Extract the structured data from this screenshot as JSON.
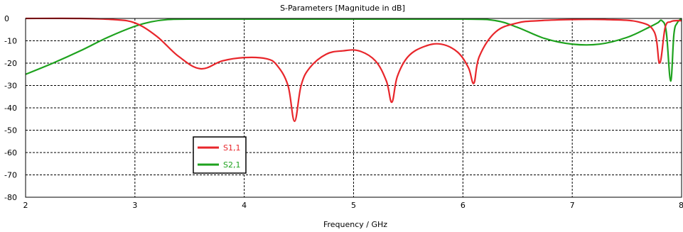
{
  "chart_data": {
    "type": "line",
    "title": "S-Parameters [Magnitude in dB]",
    "xlabel": "Frequency / GHz",
    "ylabel": "",
    "xlim": [
      2,
      8
    ],
    "ylim": [
      -80,
      0
    ],
    "xticks": [
      2,
      3,
      4,
      5,
      6,
      7,
      8
    ],
    "yticks": [
      0,
      -10,
      -20,
      -30,
      -40,
      -50,
      -60,
      -70,
      -80
    ],
    "grid": true,
    "legend": "lower-left",
    "series": [
      {
        "name": "S1,1",
        "color": "#e8262b",
        "x": [
          2.0,
          2.5,
          2.8,
          3.0,
          3.2,
          3.4,
          3.6,
          3.8,
          4.0,
          4.2,
          4.3,
          4.4,
          4.46,
          4.52,
          4.6,
          4.75,
          4.9,
          5.05,
          5.2,
          5.3,
          5.35,
          5.4,
          5.5,
          5.65,
          5.8,
          5.95,
          6.05,
          6.1,
          6.15,
          6.3,
          6.5,
          6.7,
          7.0,
          7.3,
          7.6,
          7.75,
          7.8,
          7.85,
          7.9,
          7.95,
          8.0
        ],
        "values": [
          0,
          0,
          -0.5,
          -2,
          -8,
          -17,
          -22.5,
          -19,
          -17.5,
          -18,
          -21,
          -30,
          -46,
          -30,
          -22,
          -16,
          -14.5,
          -14.5,
          -19,
          -28,
          -37.5,
          -26,
          -17,
          -12.5,
          -11.5,
          -15,
          -22,
          -29,
          -17,
          -6,
          -2,
          -1,
          -0.5,
          -0.5,
          -1.5,
          -6,
          -20,
          -4,
          -1.5,
          -1,
          -1
        ]
      },
      {
        "name": "S2,1",
        "color": "#1ea21e",
        "x": [
          2.0,
          2.25,
          2.5,
          2.75,
          3.0,
          3.15,
          3.3,
          3.5,
          4.0,
          5.0,
          6.0,
          6.3,
          6.5,
          6.75,
          7.0,
          7.25,
          7.5,
          7.7,
          7.78,
          7.82,
          7.86,
          7.9,
          7.93,
          7.96,
          8.0
        ],
        "values": [
          -25,
          -20,
          -14.5,
          -8.5,
          -3.5,
          -1.5,
          -0.5,
          -0.3,
          -0.3,
          -0.3,
          -0.3,
          -1,
          -4,
          -9,
          -11.5,
          -11.5,
          -8.5,
          -4,
          -2,
          -1,
          -6,
          -28,
          -7,
          -2,
          0
        ]
      }
    ]
  }
}
